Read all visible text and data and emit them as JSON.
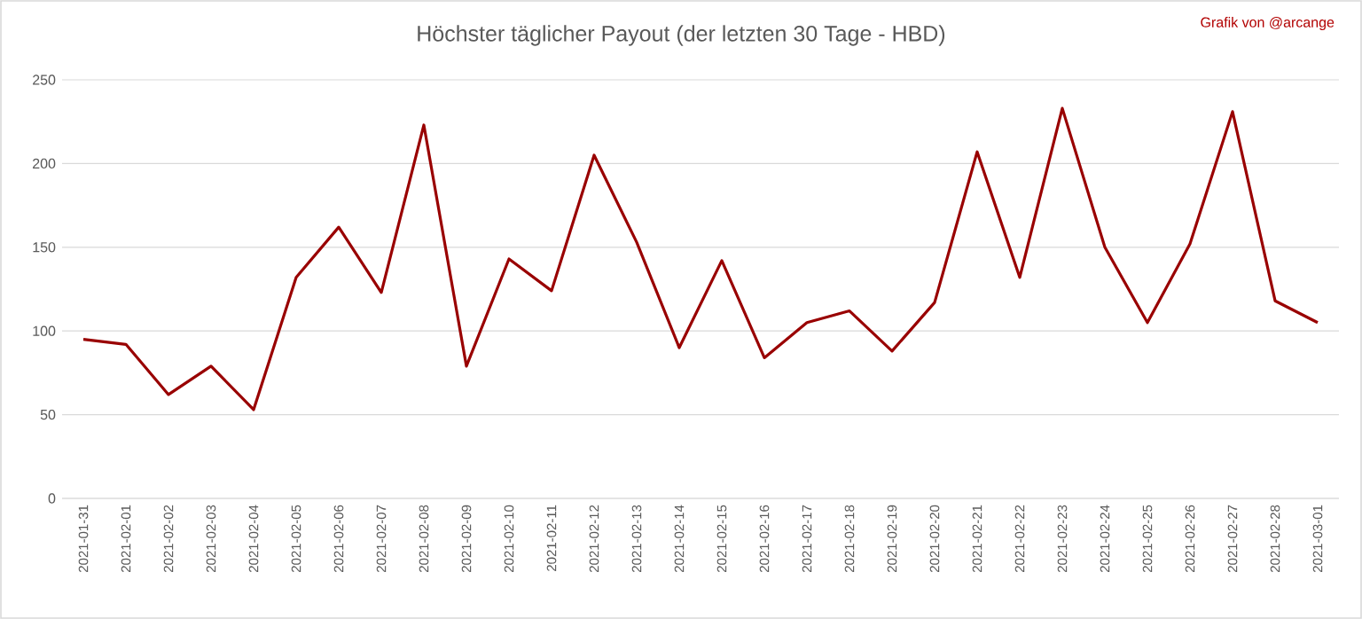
{
  "chart_data": {
    "type": "line",
    "title": "Höchster täglicher Payout (der letzten 30 Tage - HBD)",
    "annotations": [
      "Grafik von @arcange"
    ],
    "categories": [
      "2021-01-31",
      "2021-02-01",
      "2021-02-02",
      "2021-02-03",
      "2021-02-04",
      "2021-02-05",
      "2021-02-06",
      "2021-02-07",
      "2021-02-08",
      "2021-02-09",
      "2021-02-10",
      "2021-02-11",
      "2021-02-12",
      "2021-02-13",
      "2021-02-14",
      "2021-02-15",
      "2021-02-16",
      "2021-02-17",
      "2021-02-18",
      "2021-02-19",
      "2021-02-20",
      "2021-02-21",
      "2021-02-22",
      "2021-02-23",
      "2021-02-24",
      "2021-02-25",
      "2021-02-26",
      "2021-02-27",
      "2021-02-28",
      "2021-03-01"
    ],
    "series": [
      {
        "color": "#990000",
        "values": [
          95,
          92,
          62,
          79,
          53,
          132,
          162,
          123,
          223,
          79,
          143,
          124,
          205,
          153,
          90,
          142,
          84,
          105,
          112,
          88,
          117,
          207,
          132,
          233,
          150,
          105,
          152,
          231,
          118,
          105
        ]
      }
    ],
    "ylim": [
      0,
      250
    ],
    "yticks": [
      0,
      50,
      100,
      150,
      200,
      250
    ],
    "grid": "y",
    "marker": "none",
    "line_style": "solid"
  }
}
